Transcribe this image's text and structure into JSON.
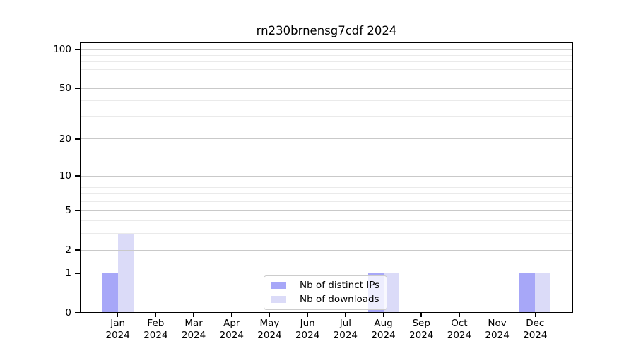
{
  "title": "rn230brnensg7cdf 2024",
  "chart_data": {
    "type": "bar",
    "title": "rn230brnensg7cdf 2024",
    "year": "2024",
    "categories": [
      "Jan",
      "Feb",
      "Mar",
      "Apr",
      "May",
      "Jun",
      "Jul",
      "Aug",
      "Sep",
      "Oct",
      "Nov",
      "Dec"
    ],
    "series": [
      {
        "name": "Nb of distinct IPs",
        "color": "#a7a7f8",
        "values": [
          1,
          0,
          0,
          0,
          0,
          0,
          0,
          1,
          0,
          0,
          0,
          1
        ]
      },
      {
        "name": "Nb of downloads",
        "color": "#dbdbf8",
        "values": [
          3,
          0,
          0,
          0,
          0,
          0,
          0,
          1,
          0,
          0,
          0,
          1
        ]
      }
    ],
    "xlabel": "",
    "ylabel": "",
    "yscale": "log1p",
    "ylim": [
      0,
      113
    ],
    "y_ticks_major": [
      0,
      1,
      2,
      5,
      10,
      20,
      50,
      100
    ],
    "y_ticks_minor": [
      3,
      4,
      6,
      7,
      8,
      9,
      30,
      40,
      60,
      70,
      80,
      90
    ],
    "grid": true,
    "legend_position": "lower center"
  },
  "legend": {
    "items": [
      {
        "label": "Nb of distinct IPs",
        "color": "#a7a7f8"
      },
      {
        "label": "Nb of downloads",
        "color": "#dbdbf8"
      }
    ]
  }
}
